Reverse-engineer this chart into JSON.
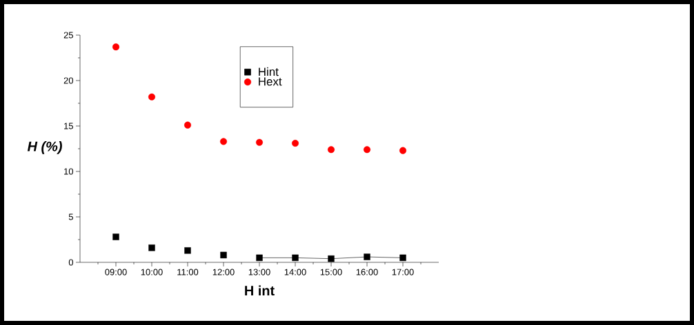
{
  "chart_data": {
    "type": "scatter",
    "xlabel": "H int",
    "ylabel": "H (%)",
    "categories": [
      "09:00",
      "10:00",
      "11:00",
      "12:00",
      "13:00",
      "14:00",
      "15:00",
      "16:00",
      "17:00"
    ],
    "series": [
      {
        "name": "Hint",
        "color": "#000000",
        "marker": "square",
        "values": [
          2.8,
          1.6,
          1.3,
          0.8,
          0.5,
          0.5,
          0.4,
          0.6,
          0.5
        ]
      },
      {
        "name": "Hext",
        "color": "#ff0000",
        "marker": "circle",
        "values": [
          23.7,
          18.2,
          15.1,
          13.3,
          13.2,
          13.1,
          12.4,
          12.4,
          12.3
        ]
      },
      {
        "type": "line",
        "color": "#000000",
        "marker": "none",
        "values": [
          null,
          null,
          null,
          null,
          0.5,
          0.5,
          0.4,
          0.6,
          0.5
        ]
      }
    ],
    "ylim": [
      0,
      25
    ],
    "yticks": [
      0,
      5,
      10,
      15,
      20,
      25
    ],
    "legend": "top",
    "grid": false
  }
}
